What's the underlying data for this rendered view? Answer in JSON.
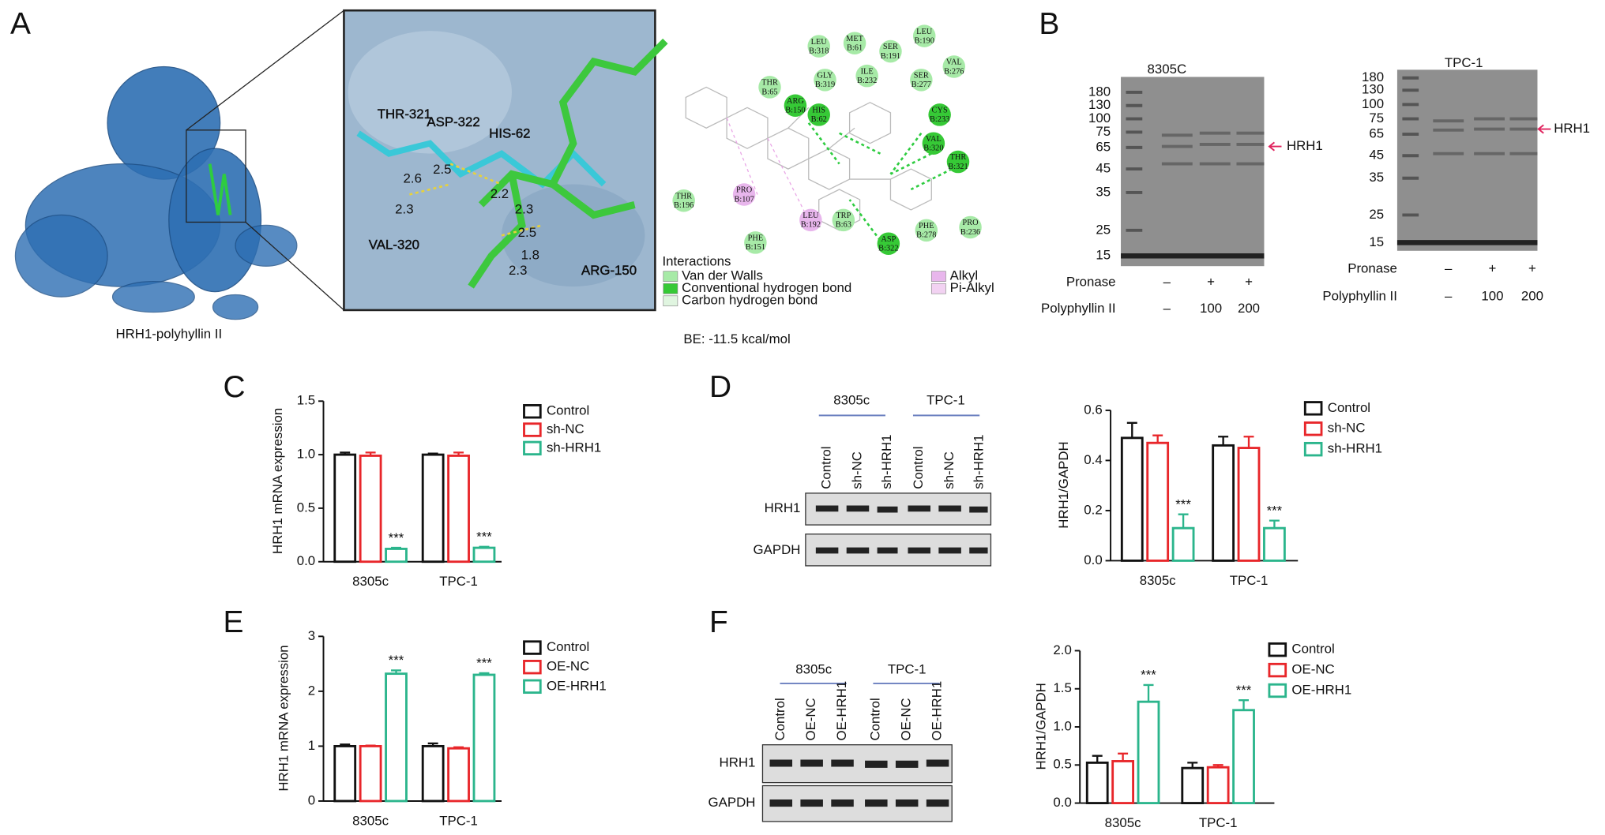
{
  "panel_labels": [
    "A",
    "B",
    "C",
    "D",
    "E",
    "F"
  ],
  "panel_a": {
    "protein_caption": "HRH1-polyhyllin II",
    "residue_labels": [
      "THR-321",
      "ASP-322",
      "HIS-62",
      "VAL-320",
      "ARG-150"
    ],
    "distances": [
      "2.6",
      "2.5",
      "2.3",
      "2.2",
      "2.3",
      "2.5",
      "1.8",
      "2.3"
    ],
    "interaction_residues": [
      {
        "name": "LEU",
        "chain": "B:318"
      },
      {
        "name": "MET",
        "chain": "B:61"
      },
      {
        "name": "LEU",
        "chain": "B:190"
      },
      {
        "name": "SER",
        "chain": "B:191"
      },
      {
        "name": "VAL",
        "chain": "B:276"
      },
      {
        "name": "THR",
        "chain": "B:65"
      },
      {
        "name": "GLY",
        "chain": "B:319"
      },
      {
        "name": "ILE",
        "chain": "B:232"
      },
      {
        "name": "SER",
        "chain": "B:277"
      },
      {
        "name": "ARG",
        "chain": "B:150"
      },
      {
        "name": "HIS",
        "chain": "B:62"
      },
      {
        "name": "CYS",
        "chain": "B:233"
      },
      {
        "name": "VAL",
        "chain": "B:320"
      },
      {
        "name": "THR",
        "chain": "B:321"
      },
      {
        "name": "THR",
        "chain": "B:196"
      },
      {
        "name": "PRO",
        "chain": "B:107"
      },
      {
        "name": "LEU",
        "chain": "B:192"
      },
      {
        "name": "TRP",
        "chain": "B:63"
      },
      {
        "name": "PHE",
        "chain": "B:278"
      },
      {
        "name": "PRO",
        "chain": "B:236"
      },
      {
        "name": "PHE",
        "chain": "B:151"
      },
      {
        "name": "ASP",
        "chain": "B:322"
      }
    ],
    "legend_title": "Interactions",
    "legend_items": [
      "Van der Walls",
      "Conventional hydrogen bond",
      "Carbon hydrogen bond",
      "Alkyl",
      "Pi-Alkyl"
    ],
    "binding_energy": "BE: -11.5 kcal/mol"
  },
  "panel_b": {
    "gels": [
      {
        "title": "8305C",
        "ladder": [
          "180",
          "130",
          "100",
          "75",
          "65",
          "45",
          "35",
          "25",
          "15"
        ],
        "band_label": "HRH1",
        "row_labels": [
          "Pronase",
          "Polyphyllin II"
        ],
        "pronase": [
          "–",
          "+",
          "+"
        ],
        "polyphyllin": [
          "–",
          "100",
          "200"
        ]
      },
      {
        "title": "TPC-1",
        "ladder": [
          "180",
          "130",
          "100",
          "75",
          "65",
          "45",
          "35",
          "25",
          "15"
        ],
        "band_label": "HRH1",
        "row_labels": [
          "Pronase",
          "Polyphyllin II"
        ],
        "pronase": [
          "–",
          "+",
          "+"
        ],
        "polyphyllin": [
          "–",
          "100",
          "200"
        ]
      }
    ]
  },
  "blots": [
    {
      "groups": [
        "8305c",
        "TPC-1"
      ],
      "lanes": [
        "Control",
        "sh-NC",
        "sh-HRH1",
        "Control",
        "sh-NC",
        "sh-HRH1"
      ],
      "rows": [
        "HRH1",
        "GAPDH"
      ]
    },
    {
      "groups": [
        "8305c",
        "TPC-1"
      ],
      "lanes": [
        "Control",
        "OE-NC",
        "OE-HRH1",
        "Control",
        "OE-NC",
        "OE-HRH1"
      ],
      "rows": [
        "HRH1",
        "GAPDH"
      ]
    }
  ],
  "chart_data": [
    {
      "type": "bar",
      "ylabel": "HRH1 mRNA expression",
      "categories": [
        "8305c",
        "TPC-1"
      ],
      "ylim": [
        0,
        1.5
      ],
      "yticks": [
        {
          "value": 0,
          "label": "0.0"
        },
        0.5,
        {
          "value": 1,
          "label": "1.0"
        },
        1.5
      ],
      "series": [
        {
          "name": "Control",
          "color": "#111111",
          "values": [
            1.0,
            1.0
          ],
          "errors": [
            0.02,
            0.01
          ]
        },
        {
          "name": "sh-NC",
          "color": "#e8262a",
          "values": [
            0.99,
            0.99
          ],
          "errors": [
            0.03,
            0.03
          ]
        },
        {
          "name": "sh-HRH1",
          "color": "#2bb58c",
          "values": [
            0.12,
            0.13
          ],
          "errors": [
            0.01,
            0.01
          ],
          "annotations": [
            "***",
            "***"
          ]
        }
      ]
    },
    {
      "type": "bar",
      "ylabel": "HRH1/GAPDH",
      "categories": [
        "8305c",
        "TPC-1"
      ],
      "ylim": [
        0,
        0.6
      ],
      "yticks": [
        {
          "value": 0,
          "label": "0.0"
        },
        0.2,
        0.4,
        0.6
      ],
      "series": [
        {
          "name": "Control",
          "color": "#111111",
          "values": [
            0.49,
            0.46
          ],
          "errors": [
            0.06,
            0.035
          ]
        },
        {
          "name": "sh-NC",
          "color": "#e8262a",
          "values": [
            0.47,
            0.45
          ],
          "errors": [
            0.03,
            0.045
          ]
        },
        {
          "name": "sh-HRH1",
          "color": "#2bb58c",
          "values": [
            0.13,
            0.13
          ],
          "errors": [
            0.055,
            0.03
          ],
          "annotations": [
            "***",
            "***"
          ]
        }
      ]
    },
    {
      "type": "bar",
      "ylabel": "HRH1 mRNA expression",
      "categories": [
        "8305c",
        "TPC-1"
      ],
      "ylim": [
        0,
        3
      ],
      "yticks": [
        0,
        1,
        2,
        3
      ],
      "series": [
        {
          "name": "Control",
          "color": "#111111",
          "values": [
            1.0,
            1.0
          ],
          "errors": [
            0.03,
            0.05
          ]
        },
        {
          "name": "OE-NC",
          "color": "#e8262a",
          "values": [
            1.0,
            0.96
          ],
          "errors": [
            0.01,
            0.02
          ]
        },
        {
          "name": "OE-HRH1",
          "color": "#2bb58c",
          "values": [
            2.32,
            2.3
          ],
          "errors": [
            0.06,
            0.03
          ],
          "annotations": [
            "***",
            "***"
          ]
        }
      ]
    },
    {
      "type": "bar",
      "ylabel": "HRH1/GAPDH",
      "categories": [
        "8305c",
        "TPC-1"
      ],
      "ylim": [
        0,
        2
      ],
      "yticks": [
        {
          "value": 0,
          "label": "0.0"
        },
        0.5,
        {
          "value": 1,
          "label": "1.0"
        },
        1.5,
        {
          "value": 2,
          "label": "2.0"
        }
      ],
      "series": [
        {
          "name": "Control",
          "color": "#111111",
          "values": [
            0.53,
            0.46
          ],
          "errors": [
            0.09,
            0.07
          ]
        },
        {
          "name": "OE-NC",
          "color": "#e8262a",
          "values": [
            0.55,
            0.47
          ],
          "errors": [
            0.1,
            0.03
          ]
        },
        {
          "name": "OE-HRH1",
          "color": "#2bb58c",
          "values": [
            1.33,
            1.22
          ],
          "errors": [
            0.22,
            0.13
          ],
          "annotations": [
            "***",
            "***"
          ]
        }
      ]
    }
  ]
}
